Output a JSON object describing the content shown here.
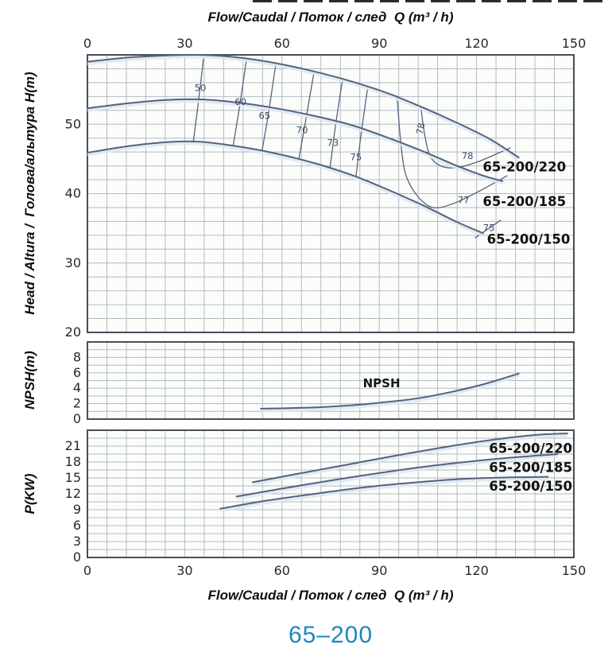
{
  "page_title": {
    "text": "65–200",
    "color": "#1e87c2"
  },
  "axes": {
    "top_title": "Flow/Caudal / Поток / след  Q (m³ / h)",
    "bottom_title": "Flow/Caudal / Поток / след  Q (m³ / h)",
    "head_axis_title": "Head / Altura /  Голова/альтура H(m)",
    "npsh_axis_title": "NPSH(m)",
    "power_axis_title": "P(KW)"
  },
  "chart_data": {
    "type": "line",
    "title": "65-200 pump performance curves",
    "x_unit": "m³/h",
    "x_range": [
      0,
      150
    ],
    "x_major_ticks": [
      0,
      30,
      60,
      90,
      120,
      150
    ],
    "legend_position": "inline-labels",
    "grid": true,
    "colors": {
      "accent": "#1e87c2",
      "curve": "#55627c",
      "halo": "#dce8f2",
      "grid": "#aebbc3",
      "frame": "#474e58",
      "panelbg": "#fcfdfa"
    },
    "panels": [
      {
        "name": "head",
        "ylabel": "H(m)",
        "frame": {
          "left": 110,
          "top": 69,
          "right": 722,
          "bottom": 418
        },
        "y_range": [
          20,
          60
        ],
        "grid_dx": 6,
        "grid_dy": 2,
        "y_ticks": [
          20,
          30,
          40,
          50
        ],
        "x_ticks": "top",
        "series": [
          {
            "name": "65-200/220",
            "points": [
              [
                0,
                59.0
              ],
              [
                12,
                59.6
              ],
              [
                24,
                59.9
              ],
              [
                34,
                60.0
              ],
              [
                45,
                59.7
              ],
              [
                57,
                58.9
              ],
              [
                70,
                57.6
              ],
              [
                82,
                56.1
              ],
              [
                93,
                54.4
              ],
              [
                104,
                52.3
              ],
              [
                114,
                50.2
              ],
              [
                124,
                47.9
              ],
              [
                133,
                45.2
              ]
            ]
          },
          {
            "name": "65-200/185",
            "points": [
              [
                0,
                52.3
              ],
              [
                12,
                53.0
              ],
              [
                24,
                53.5
              ],
              [
                34,
                53.6
              ],
              [
                45,
                53.2
              ],
              [
                57,
                52.4
              ],
              [
                70,
                51.2
              ],
              [
                82,
                49.8
              ],
              [
                93,
                48.0
              ],
              [
                104,
                46.0
              ],
              [
                114,
                44.0
              ],
              [
                122,
                42.6
              ],
              [
                128,
                41.8
              ]
            ]
          },
          {
            "name": "65-200/150",
            "points": [
              [
                0,
                45.9
              ],
              [
                12,
                46.8
              ],
              [
                24,
                47.4
              ],
              [
                34,
                47.5
              ],
              [
                45,
                46.9
              ],
              [
                57,
                45.9
              ],
              [
                70,
                44.4
              ],
              [
                82,
                42.6
              ],
              [
                93,
                40.5
              ],
              [
                104,
                38.2
              ],
              [
                114,
                35.9
              ],
              [
                122,
                34.3
              ]
            ]
          }
        ],
        "contours": [
          {
            "eff": "50",
            "points": [
              [
                35.8,
                59.5
              ],
              [
                34.3,
                53.5
              ],
              [
                32.6,
                47.3
              ]
            ]
          },
          {
            "eff": "60",
            "points": [
              [
                49.0,
                59.2
              ],
              [
                46.9,
                52.5
              ],
              [
                44.9,
                46.8
              ]
            ]
          },
          {
            "eff": "65",
            "points": [
              [
                58.1,
                58.7
              ],
              [
                55.9,
                51.8
              ],
              [
                53.9,
                46.3
              ]
            ]
          },
          {
            "eff": "70",
            "points": [
              [
                69.9,
                57.6
              ],
              [
                67.4,
                50.8
              ],
              [
                65.2,
                45.0
              ]
            ]
          },
          {
            "eff": "73",
            "points": [
              [
                78.7,
                56.5
              ],
              [
                76.5,
                49.8
              ],
              [
                74.8,
                43.7
              ]
            ]
          },
          {
            "eff": "75",
            "points": [
              [
                86.5,
                55.5
              ],
              [
                84.4,
                48.6
              ],
              [
                82.8,
                42.4
              ]
            ]
          },
          {
            "eff": "77",
            "points": [
              [
                95.5,
                54.0
              ],
              [
                96.5,
                48.0
              ],
              [
                98.0,
                43.0
              ],
              [
                101.5,
                39.8
              ],
              [
                106.5,
                38.0
              ],
              [
                113.0,
                38.6
              ],
              [
                121.0,
                40.4
              ],
              [
                129.5,
                42.6
              ]
            ]
          },
          {
            "eff": "78",
            "points": [
              [
                102.8,
                52.6
              ],
              [
                104.0,
                48.5
              ],
              [
                105.8,
                45.3
              ],
              [
                109.5,
                43.9
              ],
              [
                114.5,
                43.8
              ],
              [
                121.0,
                44.7
              ],
              [
                127.0,
                45.9
              ],
              [
                130.5,
                46.6
              ]
            ]
          },
          {
            "eff": "75",
            "points": [
              [
                119.5,
                33.6
              ],
              [
                127.5,
                36.2
              ]
            ]
          }
        ],
        "labels": [
          {
            "text": "50",
            "q": 34.8,
            "v": 54.8,
            "cls": "effLabel"
          },
          {
            "text": "60",
            "q": 47.2,
            "v": 52.8,
            "cls": "effLabel"
          },
          {
            "text": "65",
            "q": 54.6,
            "v": 50.8,
            "cls": "effLabel"
          },
          {
            "text": "70",
            "q": 66.2,
            "v": 48.7,
            "cls": "effLabel"
          },
          {
            "text": "73",
            "q": 75.7,
            "v": 46.9,
            "cls": "effLabel"
          },
          {
            "text": "75",
            "q": 82.8,
            "v": 44.8,
            "cls": "effLabel"
          },
          {
            "text": "78",
            "q": 103.7,
            "v": 49.3,
            "cls": "effLabel",
            "rotate": -80
          },
          {
            "text": "78",
            "q": 117.2,
            "v": 45.0,
            "cls": "effLabel"
          },
          {
            "text": "77",
            "q": 116.0,
            "v": 38.6,
            "cls": "effLabel"
          },
          {
            "text": "75",
            "q": 123.8,
            "v": 34.6,
            "cls": "effLabel"
          },
          {
            "text": "65-200/220",
            "q": 121.9,
            "v": 43.2,
            "anchor": "start",
            "cls": "curveLabel"
          },
          {
            "text": "65-200/185",
            "q": 121.9,
            "v": 38.2,
            "anchor": "start",
            "cls": "curveLabel"
          },
          {
            "text": "65-200/150",
            "q": 123.2,
            "v": 32.8,
            "anchor": "start",
            "cls": "curveLabel"
          }
        ]
      },
      {
        "name": "npsh",
        "ylabel": "NPSH(m)",
        "frame": {
          "left": 110,
          "top": 430,
          "right": 722,
          "bottom": 527
        },
        "y_range": [
          0,
          10
        ],
        "grid_dx": 6,
        "grid_dy": 1,
        "y_ticks": [
          0,
          2,
          4,
          6,
          8
        ],
        "x_ticks": "none",
        "series": [
          {
            "name": "NPSH",
            "points": [
              [
                53.5,
                1.35
              ],
              [
                62,
                1.42
              ],
              [
                72,
                1.55
              ],
              [
                82,
                1.8
              ],
              [
                92,
                2.2
              ],
              [
                102,
                2.7
              ],
              [
                112,
                3.5
              ],
              [
                122,
                4.5
              ],
              [
                133,
                5.9
              ]
            ]
          }
        ],
        "contours": [],
        "labels": [
          {
            "text": "NPSH",
            "q": 90.7,
            "v": 4.1,
            "cls": "npshLabel"
          }
        ]
      },
      {
        "name": "power",
        "ylabel": "P(KW)",
        "frame": {
          "left": 110,
          "top": 541,
          "right": 722,
          "bottom": 701
        },
        "y_range": [
          0,
          24
        ],
        "grid_dx": 6,
        "grid_dy": 1.5,
        "y_ticks": [
          0,
          3,
          6,
          9,
          12,
          15,
          18,
          21
        ],
        "x_ticks": "bottom",
        "series": [
          {
            "name": "65-200/220",
            "points": [
              [
                51,
                14.2
              ],
              [
                65,
                15.8
              ],
              [
                80,
                17.5
              ],
              [
                95,
                19.2
              ],
              [
                110,
                20.8
              ],
              [
                125,
                22.2
              ],
              [
                138,
                23.1
              ],
              [
                148,
                23.4
              ]
            ]
          },
          {
            "name": "65-200/185",
            "points": [
              [
                46,
                11.5
              ],
              [
                60,
                13.0
              ],
              [
                80,
                15.0
              ],
              [
                100,
                16.8
              ],
              [
                115,
                17.9
              ],
              [
                130,
                18.8
              ],
              [
                145,
                19.5
              ]
            ]
          },
          {
            "name": "65-200/150",
            "points": [
              [
                41,
                9.2
              ],
              [
                55,
                10.7
              ],
              [
                70,
                12.0
              ],
              [
                85,
                13.2
              ],
              [
                100,
                14.1
              ],
              [
                115,
                14.8
              ],
              [
                130,
                15.1
              ],
              [
                142,
                15.2
              ]
            ]
          }
        ],
        "contours": [],
        "labels": [
          {
            "text": "65-200/220",
            "q": 149.5,
            "v": 19.7,
            "anchor": "end",
            "cls": "curveLabel"
          },
          {
            "text": "65-200/185",
            "q": 149.5,
            "v": 16.1,
            "anchor": "end",
            "cls": "curveLabel"
          },
          {
            "text": "65-200/150",
            "q": 149.5,
            "v": 12.6,
            "anchor": "end",
            "cls": "curveLabel"
          }
        ]
      }
    ]
  }
}
